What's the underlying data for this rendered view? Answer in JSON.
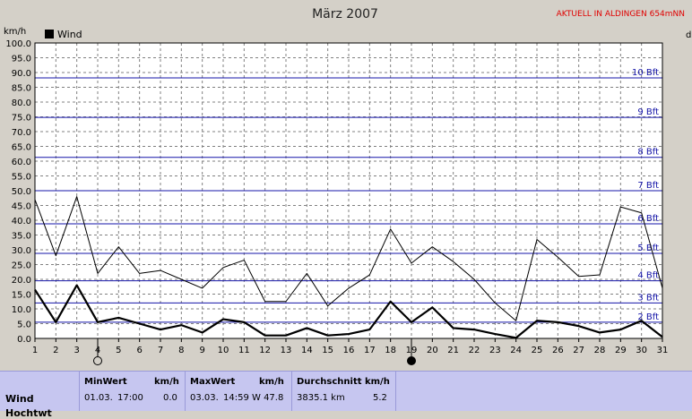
{
  "chart_data": {
    "type": "line",
    "title": "März 2007",
    "station_label": "AKTUELL IN ALDINGEN 654mNN",
    "y_unit": "km/h",
    "right_axis_unit": "d",
    "ylim": [
      0,
      100
    ],
    "y_ticks": [
      "0.0",
      "5.0",
      "10.0",
      "15.0",
      "20.0",
      "25.0",
      "30.0",
      "35.0",
      "40.0",
      "45.0",
      "50.0",
      "55.0",
      "60.0",
      "65.0",
      "70.0",
      "75.0",
      "80.0",
      "85.0",
      "90.0",
      "95.0",
      "100.0"
    ],
    "x": [
      1,
      2,
      3,
      4,
      5,
      6,
      7,
      8,
      9,
      10,
      11,
      12,
      13,
      14,
      15,
      16,
      17,
      18,
      19,
      20,
      21,
      22,
      23,
      24,
      25,
      26,
      27,
      28,
      29,
      30,
      31
    ],
    "grid": true,
    "legend": "top-left",
    "series": [
      {
        "name": "Wind",
        "role": "average",
        "values": [
          16.5,
          5.5,
          18,
          5.5,
          7,
          5,
          3,
          4.5,
          2,
          6.5,
          5.5,
          1,
          1,
          3.5,
          1,
          1.5,
          3,
          12.5,
          5.5,
          10.5,
          3.5,
          3,
          1.5,
          0.2,
          6,
          5.5,
          4.2,
          2,
          3,
          6,
          0.5
        ]
      },
      {
        "name": "",
        "role": "max",
        "values": [
          47,
          28,
          48,
          22,
          31,
          22,
          23,
          20,
          17,
          24,
          26.5,
          12.5,
          12.5,
          22,
          11,
          17,
          21.5,
          37,
          25.5,
          31,
          26,
          20,
          12,
          6,
          33.5,
          27.5,
          21,
          21.5,
          44.5,
          42.5,
          17
        ]
      }
    ],
    "beaufort": [
      {
        "label": "2 Bft",
        "value": 5.5
      },
      {
        "label": "3 Bft",
        "value": 12
      },
      {
        "label": "4 Bft",
        "value": 19.5
      },
      {
        "label": "5 Bft",
        "value": 28.8
      },
      {
        "label": "6 Bft",
        "value": 38.8
      },
      {
        "label": "7 Bft",
        "value": 50
      },
      {
        "label": "8 Bft",
        "value": 61.3
      },
      {
        "label": "9 Bft",
        "value": 74.8
      },
      {
        "label": "10 Bft",
        "value": 88.2
      }
    ],
    "markers": [
      {
        "day": 4,
        "symbol": "open-circle"
      },
      {
        "day": 19,
        "symbol": "filled-circle"
      }
    ],
    "colors": {
      "plot_bg": "#ffffff",
      "grid": "#808080",
      "beaufort": "#1515a8",
      "series": "#000000",
      "stats_bg": "#c6c6f0",
      "aktuell": "#e00000"
    }
  },
  "stats": {
    "row_label": "Wind",
    "row_label_2": "Hochtwt",
    "min": {
      "header": "MinWert",
      "unit": "km/h",
      "date": "01.03.",
      "time": "17:00",
      "value": "0.0"
    },
    "max": {
      "header": "MaxWert",
      "unit": "km/h",
      "date": "03.03.",
      "time": "14:59",
      "value": "W 47.8"
    },
    "avg": {
      "header": "Durchschnitt km/h",
      "distance": "3835.1 km",
      "value": "5.2"
    }
  }
}
